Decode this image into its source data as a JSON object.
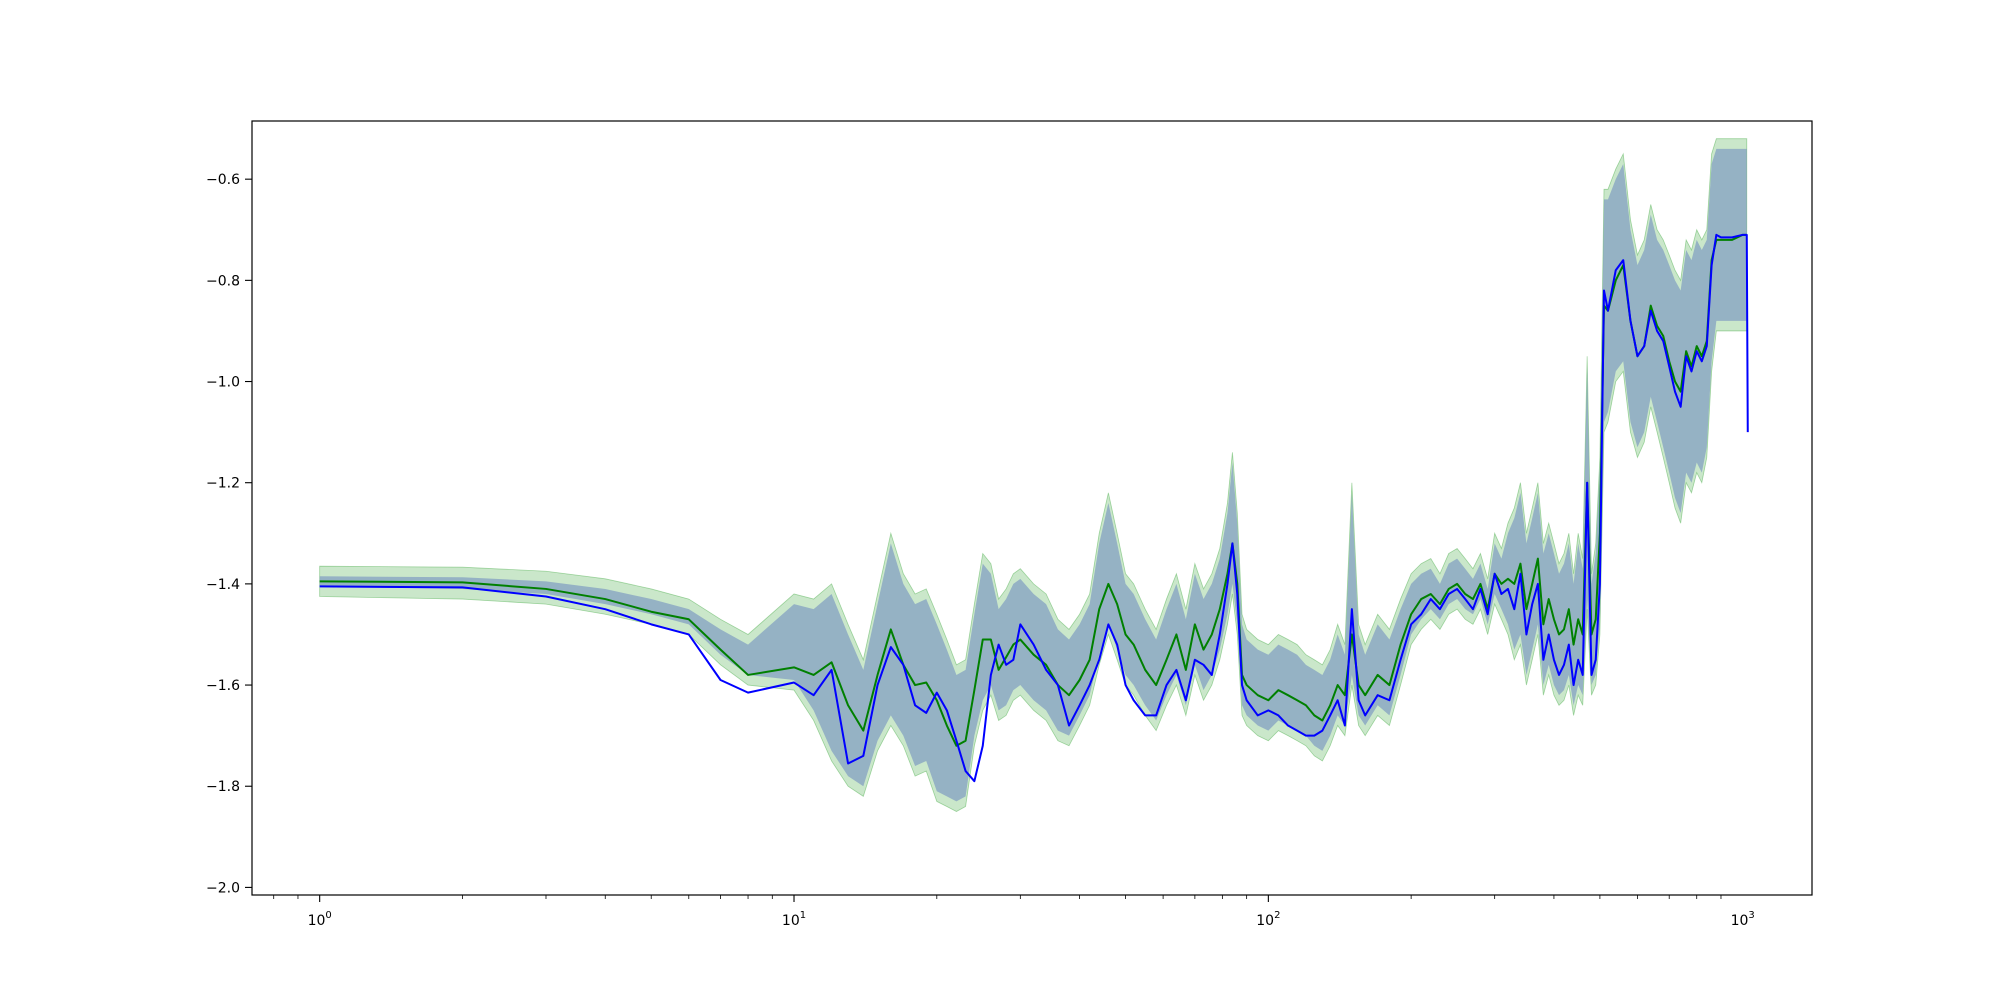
{
  "chart_data": {
    "type": "line",
    "title": "",
    "xlabel": "",
    "ylabel": "",
    "x_scale": "log",
    "xlim": [
      0.72,
      1400
    ],
    "ylim": [
      -2.015,
      -0.485
    ],
    "x_major_ticks": [
      1,
      10,
      100,
      1000
    ],
    "x_major_tick_labels": [
      {
        "base": "10",
        "exp": "0"
      },
      {
        "base": "10",
        "exp": "1"
      },
      {
        "base": "10",
        "exp": "2"
      },
      {
        "base": "10",
        "exp": "3"
      }
    ],
    "y_ticks": [
      -0.6,
      -0.8,
      -1.0,
      -1.2,
      -1.4,
      -1.6,
      -1.8,
      -2.0
    ],
    "y_tick_labels": [
      "−0.6",
      "−0.8",
      "−1.0",
      "−1.2",
      "−1.4",
      "−1.6",
      "−1.8",
      "−2.0"
    ],
    "grid": false,
    "legend": "none",
    "series": [
      {
        "color": "#008000",
        "band_color": "#2ca02c",
        "x": [
          1,
          2,
          3,
          4,
          5,
          6,
          7,
          8,
          10,
          11,
          12,
          13,
          14,
          15,
          16,
          17,
          18,
          19,
          20,
          21,
          22,
          23,
          24,
          25,
          26,
          27,
          28,
          29,
          30,
          32,
          34,
          36,
          38,
          40,
          42,
          44,
          46,
          48,
          50,
          52,
          55,
          58,
          61,
          64,
          67,
          70,
          73,
          76,
          79,
          82,
          84,
          86,
          88,
          90,
          95,
          100,
          105,
          110,
          115,
          120,
          125,
          130,
          135,
          140,
          145,
          150,
          155,
          160,
          170,
          180,
          190,
          200,
          210,
          220,
          230,
          240,
          250,
          260,
          270,
          280,
          290,
          300,
          310,
          320,
          330,
          340,
          350,
          360,
          370,
          380,
          390,
          400,
          410,
          420,
          430,
          440,
          450,
          460,
          470,
          480,
          490,
          500,
          510,
          520,
          540,
          560,
          580,
          600,
          620,
          640,
          660,
          680,
          700,
          720,
          740,
          760,
          780,
          800,
          820,
          840,
          860,
          880,
          900,
          950,
          1000,
          1020
        ],
        "y": [
          -1.395,
          -1.397,
          -1.41,
          -1.43,
          -1.455,
          -1.47,
          -1.53,
          -1.58,
          -1.565,
          -1.58,
          -1.555,
          -1.64,
          -1.69,
          -1.58,
          -1.49,
          -1.56,
          -1.6,
          -1.595,
          -1.63,
          -1.68,
          -1.72,
          -1.71,
          -1.61,
          -1.51,
          -1.51,
          -1.57,
          -1.545,
          -1.52,
          -1.51,
          -1.54,
          -1.56,
          -1.6,
          -1.62,
          -1.59,
          -1.55,
          -1.45,
          -1.4,
          -1.44,
          -1.5,
          -1.52,
          -1.57,
          -1.6,
          -1.55,
          -1.5,
          -1.57,
          -1.48,
          -1.53,
          -1.5,
          -1.45,
          -1.38,
          -1.32,
          -1.4,
          -1.58,
          -1.6,
          -1.62,
          -1.63,
          -1.61,
          -1.62,
          -1.63,
          -1.64,
          -1.66,
          -1.67,
          -1.64,
          -1.6,
          -1.62,
          -1.5,
          -1.6,
          -1.62,
          -1.58,
          -1.6,
          -1.52,
          -1.46,
          -1.43,
          -1.42,
          -1.44,
          -1.41,
          -1.4,
          -1.42,
          -1.43,
          -1.4,
          -1.45,
          -1.38,
          -1.4,
          -1.39,
          -1.4,
          -1.36,
          -1.45,
          -1.4,
          -1.35,
          -1.48,
          -1.43,
          -1.47,
          -1.5,
          -1.49,
          -1.45,
          -1.52,
          -1.47,
          -1.5,
          -1.2,
          -1.5,
          -1.47,
          -1.3,
          -0.85,
          -0.86,
          -0.8,
          -0.77,
          -0.88,
          -0.95,
          -0.93,
          -0.85,
          -0.89,
          -0.91,
          -0.96,
          -1.0,
          -1.02,
          -0.94,
          -0.97,
          -0.93,
          -0.95,
          -0.92,
          -0.76,
          -0.72,
          -0.72,
          -0.72,
          -0.71,
          -0.71
        ],
        "lower": [
          -1.425,
          -1.43,
          -1.44,
          -1.46,
          -1.48,
          -1.5,
          -1.56,
          -1.6,
          -1.61,
          -1.67,
          -1.75,
          -1.8,
          -1.82,
          -1.73,
          -1.68,
          -1.72,
          -1.78,
          -1.77,
          -1.83,
          -1.84,
          -1.85,
          -1.84,
          -1.72,
          -1.65,
          -1.62,
          -1.67,
          -1.66,
          -1.63,
          -1.62,
          -1.65,
          -1.67,
          -1.71,
          -1.72,
          -1.68,
          -1.64,
          -1.56,
          -1.5,
          -1.55,
          -1.6,
          -1.62,
          -1.66,
          -1.69,
          -1.64,
          -1.6,
          -1.66,
          -1.58,
          -1.63,
          -1.6,
          -1.55,
          -1.48,
          -1.42,
          -1.5,
          -1.66,
          -1.68,
          -1.7,
          -1.71,
          -1.69,
          -1.7,
          -1.71,
          -1.72,
          -1.74,
          -1.75,
          -1.72,
          -1.68,
          -1.7,
          -1.6,
          -1.68,
          -1.7,
          -1.66,
          -1.68,
          -1.6,
          -1.52,
          -1.49,
          -1.47,
          -1.49,
          -1.46,
          -1.45,
          -1.47,
          -1.48,
          -1.45,
          -1.5,
          -1.44,
          -1.47,
          -1.5,
          -1.55,
          -1.52,
          -1.6,
          -1.55,
          -1.5,
          -1.62,
          -1.58,
          -1.62,
          -1.64,
          -1.63,
          -1.6,
          -1.66,
          -1.62,
          -1.64,
          -1.45,
          -1.62,
          -1.6,
          -1.5,
          -1.1,
          -1.08,
          -1.0,
          -0.98,
          -1.1,
          -1.15,
          -1.12,
          -1.05,
          -1.1,
          -1.15,
          -1.2,
          -1.25,
          -1.28,
          -1.2,
          -1.22,
          -1.18,
          -1.2,
          -1.15,
          -0.98,
          -0.9,
          -0.9,
          -0.9,
          -0.9,
          -0.9
        ],
        "upper": [
          -1.365,
          -1.367,
          -1.375,
          -1.39,
          -1.41,
          -1.43,
          -1.47,
          -1.5,
          -1.42,
          -1.43,
          -1.4,
          -1.48,
          -1.55,
          -1.42,
          -1.3,
          -1.38,
          -1.42,
          -1.41,
          -1.46,
          -1.51,
          -1.56,
          -1.55,
          -1.44,
          -1.34,
          -1.36,
          -1.43,
          -1.41,
          -1.38,
          -1.37,
          -1.4,
          -1.42,
          -1.47,
          -1.49,
          -1.46,
          -1.42,
          -1.3,
          -1.22,
          -1.3,
          -1.38,
          -1.4,
          -1.45,
          -1.49,
          -1.43,
          -1.38,
          -1.45,
          -1.36,
          -1.41,
          -1.38,
          -1.33,
          -1.24,
          -1.14,
          -1.26,
          -1.46,
          -1.49,
          -1.51,
          -1.52,
          -1.5,
          -1.51,
          -1.52,
          -1.54,
          -1.55,
          -1.56,
          -1.53,
          -1.48,
          -1.52,
          -1.2,
          -1.48,
          -1.52,
          -1.46,
          -1.49,
          -1.43,
          -1.38,
          -1.36,
          -1.35,
          -1.38,
          -1.34,
          -1.33,
          -1.35,
          -1.37,
          -1.34,
          -1.39,
          -1.3,
          -1.33,
          -1.28,
          -1.25,
          -1.2,
          -1.3,
          -1.25,
          -1.2,
          -1.32,
          -1.28,
          -1.32,
          -1.36,
          -1.34,
          -1.3,
          -1.38,
          -1.3,
          -1.35,
          -0.95,
          -1.38,
          -1.32,
          -1.15,
          -0.62,
          -0.62,
          -0.58,
          -0.55,
          -0.68,
          -0.75,
          -0.72,
          -0.65,
          -0.7,
          -0.72,
          -0.75,
          -0.78,
          -0.8,
          -0.72,
          -0.74,
          -0.7,
          -0.72,
          -0.7,
          -0.55,
          -0.52,
          -0.52,
          -0.52,
          -0.52,
          -0.52
        ]
      },
      {
        "color": "#0000ff",
        "band_color": "#7777ff",
        "x": [
          1,
          2,
          3,
          4,
          5,
          6,
          7,
          8,
          10,
          11,
          12,
          13,
          14,
          15,
          16,
          17,
          18,
          19,
          20,
          21,
          22,
          23,
          24,
          25,
          26,
          27,
          28,
          29,
          30,
          32,
          34,
          36,
          38,
          40,
          42,
          44,
          46,
          48,
          50,
          52,
          55,
          58,
          61,
          64,
          67,
          70,
          73,
          76,
          79,
          82,
          84,
          86,
          88,
          90,
          95,
          100,
          105,
          110,
          115,
          120,
          125,
          130,
          135,
          140,
          145,
          150,
          155,
          160,
          170,
          180,
          190,
          200,
          210,
          220,
          230,
          240,
          250,
          260,
          270,
          280,
          290,
          300,
          310,
          320,
          330,
          340,
          350,
          360,
          370,
          380,
          390,
          400,
          410,
          420,
          430,
          440,
          450,
          460,
          470,
          480,
          490,
          500,
          510,
          520,
          540,
          560,
          580,
          600,
          620,
          640,
          660,
          680,
          700,
          720,
          740,
          760,
          780,
          800,
          820,
          840,
          860,
          880,
          900,
          950,
          1000,
          1020,
          1025
        ],
        "y": [
          -1.405,
          -1.407,
          -1.425,
          -1.45,
          -1.48,
          -1.5,
          -1.59,
          -1.615,
          -1.595,
          -1.62,
          -1.57,
          -1.755,
          -1.74,
          -1.6,
          -1.525,
          -1.56,
          -1.64,
          -1.655,
          -1.615,
          -1.65,
          -1.71,
          -1.77,
          -1.79,
          -1.72,
          -1.58,
          -1.52,
          -1.56,
          -1.55,
          -1.48,
          -1.52,
          -1.57,
          -1.6,
          -1.68,
          -1.64,
          -1.6,
          -1.55,
          -1.48,
          -1.52,
          -1.6,
          -1.63,
          -1.66,
          -1.66,
          -1.6,
          -1.57,
          -1.63,
          -1.55,
          -1.56,
          -1.58,
          -1.5,
          -1.4,
          -1.32,
          -1.42,
          -1.6,
          -1.63,
          -1.66,
          -1.65,
          -1.66,
          -1.68,
          -1.69,
          -1.7,
          -1.7,
          -1.69,
          -1.66,
          -1.63,
          -1.68,
          -1.45,
          -1.63,
          -1.66,
          -1.62,
          -1.63,
          -1.55,
          -1.48,
          -1.46,
          -1.43,
          -1.45,
          -1.42,
          -1.41,
          -1.43,
          -1.45,
          -1.41,
          -1.46,
          -1.38,
          -1.42,
          -1.41,
          -1.45,
          -1.38,
          -1.5,
          -1.44,
          -1.4,
          -1.55,
          -1.5,
          -1.55,
          -1.58,
          -1.56,
          -1.52,
          -1.6,
          -1.55,
          -1.58,
          -1.2,
          -1.58,
          -1.55,
          -1.4,
          -0.82,
          -0.86,
          -0.78,
          -0.76,
          -0.88,
          -0.95,
          -0.93,
          -0.86,
          -0.9,
          -0.92,
          -0.97,
          -1.02,
          -1.05,
          -0.95,
          -0.98,
          -0.94,
          -0.96,
          -0.93,
          -0.77,
          -0.71,
          -0.715,
          -0.715,
          -0.71,
          -0.71,
          -1.1
        ]
      }
    ]
  }
}
